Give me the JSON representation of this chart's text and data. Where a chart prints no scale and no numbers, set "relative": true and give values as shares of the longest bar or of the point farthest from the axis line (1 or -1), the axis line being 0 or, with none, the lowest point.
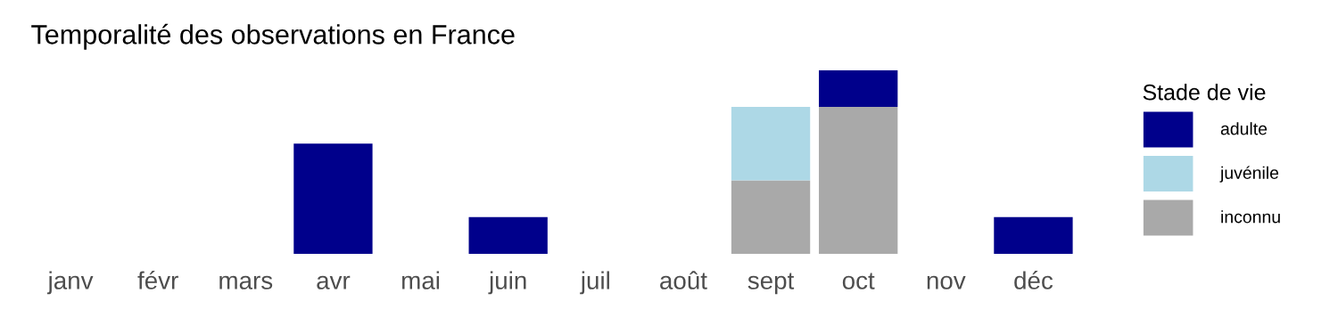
{
  "chart_data": {
    "type": "bar",
    "title": "Temporalité des observations en France",
    "legend_title": "Stade de vie",
    "legend": "right",
    "stacked": true,
    "relative": true,
    "grid": false,
    "categories": [
      "janv",
      "févr",
      "mars",
      "avr",
      "mai",
      "juin",
      "juil",
      "août",
      "sept",
      "oct",
      "nov",
      "déc"
    ],
    "series": [
      {
        "name": "inconnu",
        "color": "#a9a9a9",
        "values": [
          null,
          null,
          null,
          null,
          null,
          null,
          null,
          null,
          0.4,
          0.8,
          null,
          null
        ]
      },
      {
        "name": "juvénile",
        "color": "#add8e6",
        "values": [
          null,
          null,
          null,
          null,
          null,
          null,
          null,
          null,
          0.4,
          null,
          null,
          null
        ]
      },
      {
        "name": "adulte",
        "color": "#00008b",
        "values": [
          null,
          null,
          null,
          0.6,
          null,
          0.2,
          null,
          null,
          null,
          0.2,
          null,
          0.2
        ]
      }
    ]
  }
}
